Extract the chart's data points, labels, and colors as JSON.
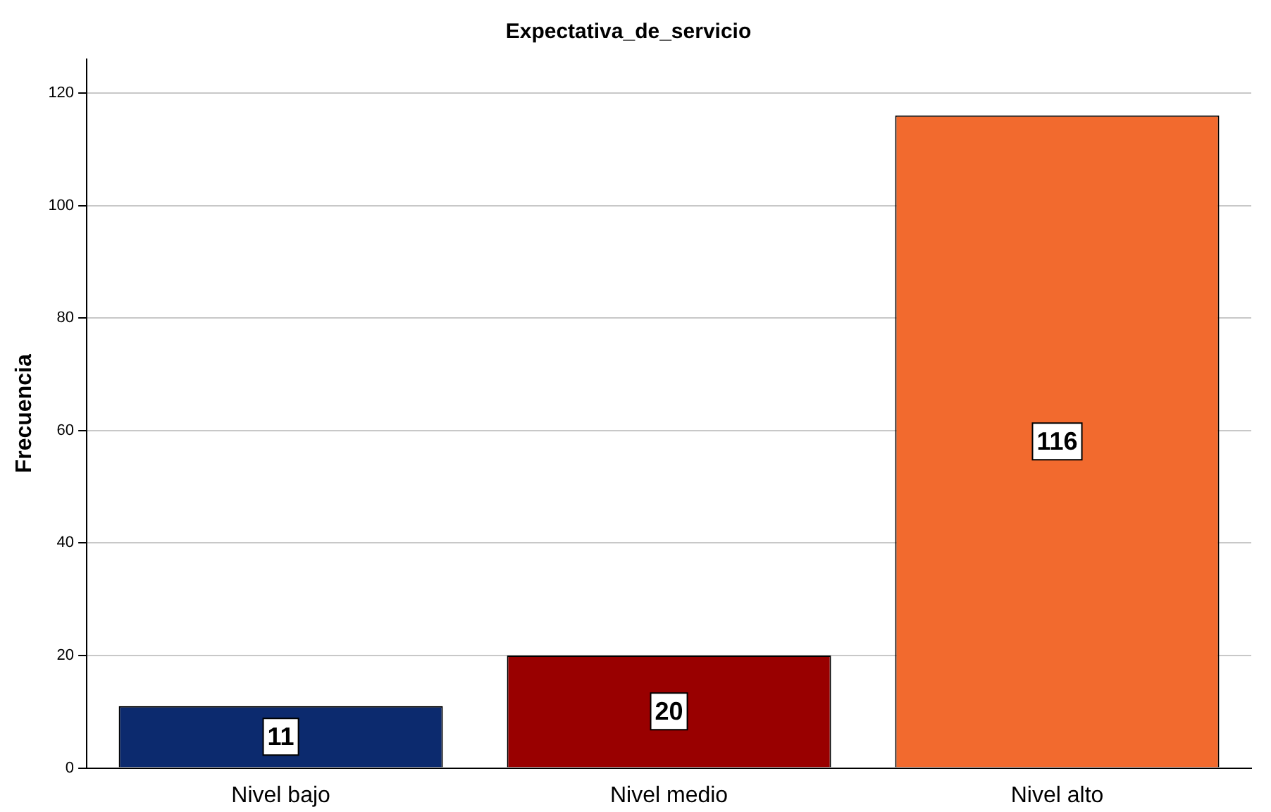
{
  "chart_data": {
    "type": "bar",
    "title": "Expectativa_de_servicio",
    "ylabel": "Frecuencia",
    "categories": [
      "Nivel bajo",
      "Nivel medio",
      "Nivel alto"
    ],
    "values": [
      11,
      20,
      116
    ],
    "colors": [
      "#0c2a6e",
      "#990000",
      "#f26a2e"
    ],
    "ylim": [
      0,
      126
    ],
    "yticks": [
      0,
      20,
      40,
      60,
      80,
      100,
      120
    ],
    "grid": "y",
    "data_labels": true,
    "legend": false
  }
}
